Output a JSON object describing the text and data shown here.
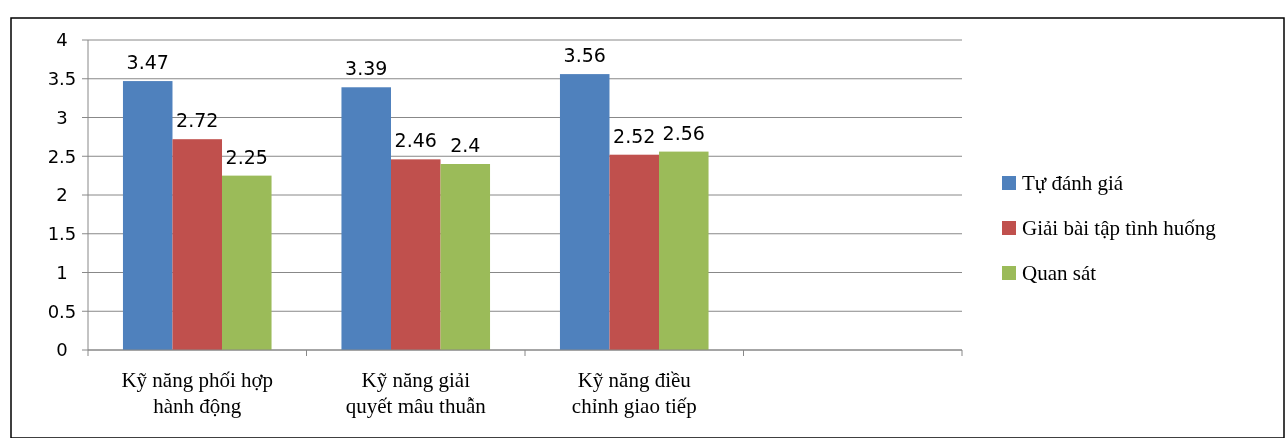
{
  "chart_data": {
    "type": "bar",
    "categories": [
      "Kỹ năng phối hợp hành động",
      "Kỹ năng giải quyết mâu thuẫn",
      "Kỹ năng điều chỉnh giao tiếp",
      null
    ],
    "series": [
      {
        "name": "Tự đánh giá",
        "color": "#4f81bd",
        "values": [
          3.47,
          3.39,
          3.56,
          null
        ]
      },
      {
        "name": "Giải bài tập tình huống",
        "color": "#c0504d",
        "values": [
          2.72,
          2.46,
          2.52,
          null
        ]
      },
      {
        "name": "Quan sát",
        "color": "#9bbb59",
        "values": [
          2.25,
          2.4,
          2.56,
          null
        ]
      }
    ],
    "ylim": [
      0,
      4
    ],
    "yticks": [
      0,
      0.5,
      1,
      1.5,
      2,
      2.5,
      3,
      3.5,
      4
    ],
    "grid": "y",
    "legend": "right",
    "data_labels": true
  }
}
